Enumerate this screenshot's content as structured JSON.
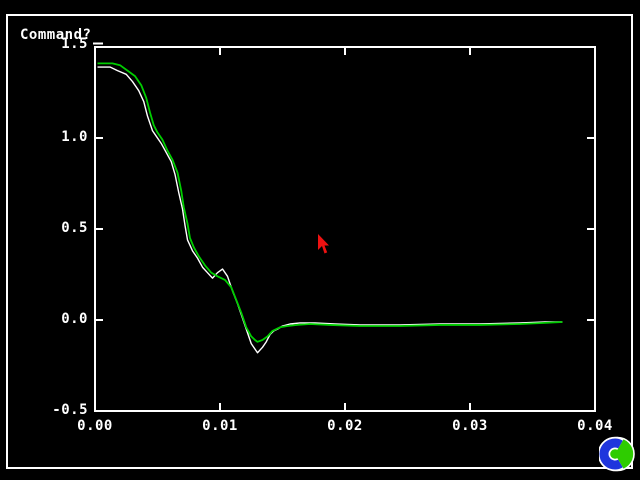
{
  "app": {
    "command_prompt": "Command?",
    "icons": {
      "busy_icon": "blue-c-green-globe-logo",
      "pointer": "red-arrow-pointer"
    }
  },
  "colors": {
    "background": "#000000",
    "frame": "#ffffff",
    "tick_text": "#ffffff",
    "cursor_red": "#ee1111",
    "icon_blue": "#1f35dd",
    "icon_green": "#2ecc00",
    "series_white": "#ffffff",
    "series_green": "#00cd00"
  },
  "chart_data": {
    "type": "line",
    "title": "",
    "xlabel": "",
    "ylabel": "",
    "xlim": [
      0,
      0.04
    ],
    "ylim": [
      -0.5,
      1.5
    ],
    "grid": false,
    "legend": "none",
    "frame_style": "full box, inward ticks on all four sides",
    "xticks": [
      0,
      0.01,
      0.02,
      0.03,
      0.04
    ],
    "yticks": [
      1.5,
      1.0,
      0.5,
      0.0,
      -0.5
    ],
    "xtick_labels": [
      "0.00",
      "0.01",
      "0.02",
      "0.03",
      "0.04"
    ],
    "ytick_labels": [
      "1.5",
      "1.0",
      "0.5",
      "0.0",
      "-0.5"
    ],
    "series": [
      {
        "name": "series-white",
        "color": "#ffffff",
        "width": 1.4,
        "points": [
          [
            0.0002,
            1.39
          ],
          [
            0.0012,
            1.39
          ],
          [
            0.0018,
            1.37
          ],
          [
            0.0025,
            1.35
          ],
          [
            0.003,
            1.31
          ],
          [
            0.0035,
            1.26
          ],
          [
            0.0039,
            1.2
          ],
          [
            0.0042,
            1.12
          ],
          [
            0.0046,
            1.04
          ],
          [
            0.0049,
            1.01
          ],
          [
            0.0053,
            0.97
          ],
          [
            0.0057,
            0.92
          ],
          [
            0.0061,
            0.87
          ],
          [
            0.0064,
            0.8
          ],
          [
            0.0067,
            0.7
          ],
          [
            0.007,
            0.61
          ],
          [
            0.0072,
            0.52
          ],
          [
            0.0074,
            0.44
          ],
          [
            0.0078,
            0.38
          ],
          [
            0.0082,
            0.34
          ],
          [
            0.0086,
            0.29
          ],
          [
            0.009,
            0.26
          ],
          [
            0.0094,
            0.23
          ],
          [
            0.0098,
            0.26
          ],
          [
            0.0102,
            0.28
          ],
          [
            0.0106,
            0.24
          ],
          [
            0.011,
            0.16
          ],
          [
            0.0114,
            0.09
          ],
          [
            0.0118,
            0.01
          ],
          [
            0.0122,
            -0.07
          ],
          [
            0.0125,
            -0.13
          ],
          [
            0.0128,
            -0.16
          ],
          [
            0.013,
            -0.18
          ],
          [
            0.0134,
            -0.15
          ],
          [
            0.0137,
            -0.12
          ],
          [
            0.014,
            -0.08
          ],
          [
            0.0143,
            -0.06
          ],
          [
            0.0146,
            -0.05
          ],
          [
            0.015,
            -0.033
          ],
          [
            0.0156,
            -0.022
          ],
          [
            0.0164,
            -0.016
          ],
          [
            0.0176,
            -0.016
          ],
          [
            0.0192,
            -0.022
          ],
          [
            0.0212,
            -0.027
          ],
          [
            0.0244,
            -0.027
          ],
          [
            0.0276,
            -0.022
          ],
          [
            0.0308,
            -0.022
          ],
          [
            0.034,
            -0.016
          ],
          [
            0.036,
            -0.011
          ],
          [
            0.0374,
            -0.011
          ]
        ]
      },
      {
        "name": "series-green",
        "color": "#00cd00",
        "width": 1.8,
        "points": [
          [
            0.0002,
            1.41
          ],
          [
            0.0014,
            1.41
          ],
          [
            0.002,
            1.4
          ],
          [
            0.0026,
            1.37
          ],
          [
            0.0032,
            1.34
          ],
          [
            0.0037,
            1.29
          ],
          [
            0.0041,
            1.22
          ],
          [
            0.0044,
            1.14
          ],
          [
            0.0047,
            1.07
          ],
          [
            0.005,
            1.03
          ],
          [
            0.0054,
            0.99
          ],
          [
            0.0058,
            0.93
          ],
          [
            0.0062,
            0.88
          ],
          [
            0.0066,
            0.81
          ],
          [
            0.0069,
            0.71
          ],
          [
            0.0071,
            0.62
          ],
          [
            0.0074,
            0.53
          ],
          [
            0.0076,
            0.45
          ],
          [
            0.0079,
            0.4
          ],
          [
            0.0083,
            0.35
          ],
          [
            0.0088,
            0.3
          ],
          [
            0.0093,
            0.26
          ],
          [
            0.0098,
            0.24
          ],
          [
            0.0104,
            0.22
          ],
          [
            0.0109,
            0.18
          ],
          [
            0.0113,
            0.11
          ],
          [
            0.0117,
            0.04
          ],
          [
            0.0121,
            -0.04
          ],
          [
            0.0125,
            -0.09
          ],
          [
            0.0128,
            -0.11
          ],
          [
            0.013,
            -0.12
          ],
          [
            0.0134,
            -0.11
          ],
          [
            0.0138,
            -0.09
          ],
          [
            0.0142,
            -0.06
          ],
          [
            0.0148,
            -0.04
          ],
          [
            0.0154,
            -0.033
          ],
          [
            0.0162,
            -0.027
          ],
          [
            0.0172,
            -0.022
          ],
          [
            0.0188,
            -0.027
          ],
          [
            0.0212,
            -0.033
          ],
          [
            0.0244,
            -0.033
          ],
          [
            0.0276,
            -0.027
          ],
          [
            0.0308,
            -0.027
          ],
          [
            0.034,
            -0.022
          ],
          [
            0.036,
            -0.016
          ],
          [
            0.0374,
            -0.011
          ]
        ]
      }
    ]
  }
}
